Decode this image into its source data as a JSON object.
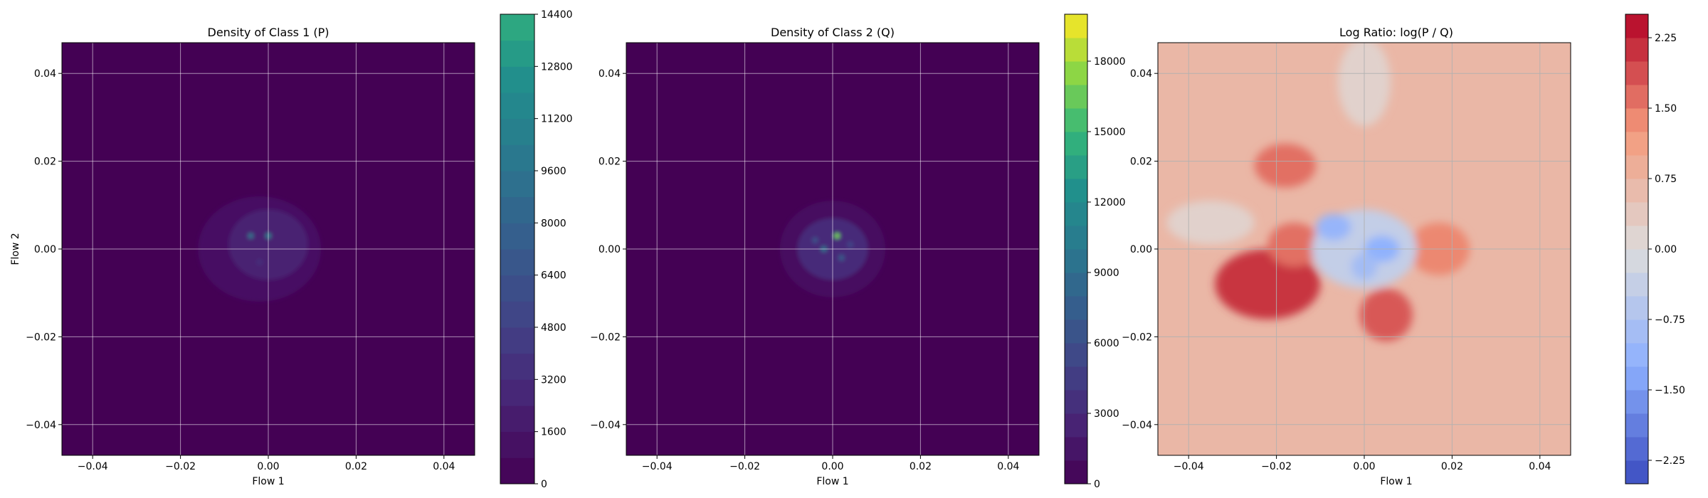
{
  "chart_data": [
    {
      "type": "heatmap",
      "title": "Density of Class 1 (P)",
      "xlabel": "Flow 1",
      "ylabel": "Flow 2",
      "xlim": [
        -0.047,
        0.047
      ],
      "ylim": [
        -0.047,
        0.047
      ],
      "xticks": [
        -0.04,
        -0.02,
        0.0,
        0.02,
        0.04
      ],
      "xticklabels": [
        "−0.04",
        "−0.02",
        "0.00",
        "0.02",
        "0.04"
      ],
      "yticks": [
        -0.04,
        -0.02,
        0.0,
        0.02,
        0.04
      ],
      "yticklabels": [
        "−0.04",
        "−0.02",
        "0.00",
        "0.02",
        "0.04"
      ],
      "grid": true,
      "colormap": "viridis",
      "colorbar": {
        "min": 0,
        "max": 14400,
        "cmap_max": 20000,
        "levels": 18,
        "ticks": [
          0,
          1600,
          3200,
          4800,
          6400,
          8000,
          9600,
          11200,
          12800,
          14400
        ],
        "ticklabels": [
          "0",
          "1600",
          "3200",
          "4800",
          "6400",
          "8000",
          "9600",
          "11200",
          "12800",
          "14400"
        ]
      },
      "peaks": [
        {
          "x": -0.004,
          "y": 0.003,
          "value": 9000
        },
        {
          "x": 0.0,
          "y": 0.003,
          "value": 10000
        },
        {
          "x": -0.002,
          "y": -0.003,
          "value": 4000
        },
        {
          "x": 0.003,
          "y": -0.002,
          "value": 3000
        }
      ],
      "blobs": [
        {
          "x": -0.002,
          "y": 0.0,
          "rx": 0.014,
          "ry": 0.012,
          "value": 1600
        },
        {
          "x": 0.0,
          "y": 0.001,
          "rx": 0.009,
          "ry": 0.008,
          "value": 2800
        }
      ]
    },
    {
      "type": "heatmap",
      "title": "Density of Class 2 (Q)",
      "xlabel": "Flow 1",
      "ylabel": "",
      "xlim": [
        -0.047,
        0.047
      ],
      "ylim": [
        -0.047,
        0.047
      ],
      "xticks": [
        -0.04,
        -0.02,
        0.0,
        0.02,
        0.04
      ],
      "xticklabels": [
        "−0.04",
        "−0.02",
        "0.00",
        "0.02",
        "0.04"
      ],
      "yticks": [
        -0.04,
        -0.02,
        0.0,
        0.02,
        0.04
      ],
      "yticklabels": [
        "−0.04",
        "−0.02",
        "0.00",
        "0.02",
        "0.04"
      ],
      "grid": true,
      "colormap": "viridis",
      "colorbar": {
        "min": 0,
        "max": 20000,
        "cmap_max": 20000,
        "levels": 20,
        "ticks": [
          0,
          3000,
          6000,
          9000,
          12000,
          15000,
          18000
        ],
        "ticklabels": [
          "0",
          "3000",
          "6000",
          "9000",
          "12000",
          "15000",
          "18000"
        ]
      },
      "peaks": [
        {
          "x": 0.001,
          "y": 0.003,
          "value": 16000
        },
        {
          "x": -0.002,
          "y": 0.0,
          "value": 9000
        },
        {
          "x": 0.002,
          "y": -0.002,
          "value": 7000
        },
        {
          "x": -0.004,
          "y": 0.002,
          "value": 6000
        },
        {
          "x": 0.004,
          "y": 0.001,
          "value": 5000
        }
      ],
      "blobs": [
        {
          "x": 0.0,
          "y": 0.0,
          "rx": 0.012,
          "ry": 0.011,
          "value": 1800
        },
        {
          "x": 0.0,
          "y": 0.0,
          "rx": 0.008,
          "ry": 0.007,
          "value": 3500
        }
      ]
    },
    {
      "type": "heatmap",
      "title": "Log Ratio: log(P / Q)",
      "xlabel": "Flow 1",
      "ylabel": "",
      "xlim": [
        -0.047,
        0.047
      ],
      "ylim": [
        -0.047,
        0.047
      ],
      "xticks": [
        -0.04,
        -0.02,
        0.0,
        0.02,
        0.04
      ],
      "xticklabels": [
        "−0.04",
        "−0.02",
        "0.00",
        "0.02",
        "0.04"
      ],
      "yticks": [
        -0.04,
        -0.02,
        0.0,
        0.02,
        0.04
      ],
      "yticklabels": [
        "−0.04",
        "−0.02",
        "0.00",
        "0.02",
        "0.04"
      ],
      "grid": true,
      "colormap": "coolwarm",
      "colorbar": {
        "min": -2.5,
        "max": 2.5,
        "levels": 20,
        "ticks": [
          -2.25,
          -1.5,
          -0.75,
          0.0,
          0.75,
          1.5,
          2.25
        ],
        "ticklabels": [
          "−2.25",
          "−1.50",
          "−0.75",
          "0.00",
          "0.75",
          "1.50",
          "2.25"
        ]
      },
      "background_value": 0.7,
      "features": [
        {
          "x": -0.022,
          "y": -0.008,
          "rx": 0.012,
          "ry": 0.008,
          "value": 2.1
        },
        {
          "x": 0.005,
          "y": -0.015,
          "rx": 0.006,
          "ry": 0.006,
          "value": 1.8
        },
        {
          "x": -0.018,
          "y": 0.019,
          "rx": 0.007,
          "ry": 0.005,
          "value": 1.6
        },
        {
          "x": 0.017,
          "y": 0.0,
          "rx": 0.007,
          "ry": 0.006,
          "value": 1.4
        },
        {
          "x": -0.016,
          "y": 0.001,
          "rx": 0.006,
          "ry": 0.005,
          "value": 1.6
        },
        {
          "x": 0.0,
          "y": 0.038,
          "rx": 0.006,
          "ry": 0.01,
          "value": 0.2
        },
        {
          "x": -0.035,
          "y": 0.006,
          "rx": 0.01,
          "ry": 0.005,
          "value": 0.2
        },
        {
          "x": 0.0,
          "y": 0.0,
          "rx": 0.012,
          "ry": 0.009,
          "value": -0.4
        },
        {
          "x": -0.007,
          "y": 0.005,
          "rx": 0.004,
          "ry": 0.003,
          "value": -1.1
        },
        {
          "x": 0.004,
          "y": 0.0,
          "rx": 0.004,
          "ry": 0.003,
          "value": -1.2
        },
        {
          "x": 0.0,
          "y": -0.004,
          "rx": 0.003,
          "ry": 0.003,
          "value": -0.9
        }
      ]
    }
  ]
}
